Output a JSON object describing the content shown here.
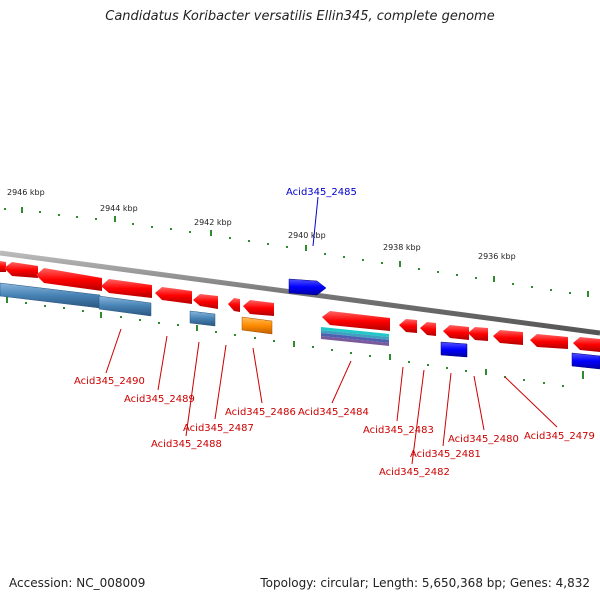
{
  "title": "Candidatus Koribacter versatilis Ellin345, complete genome",
  "footer": {
    "accession": "Accession: NC_008009",
    "topology": "Topology: circular; Length: 5,650,368 bp; Genes: 4,832"
  },
  "colors": {
    "backbone": "#888888",
    "ticks": "#2e8b2e",
    "red_gene": "#ff0000",
    "blue_gene": "#0000ff",
    "steel_gene": "#4682b4",
    "orange_gene": "#ff8c00",
    "teal_gene": "#20b2aa",
    "purple_gene": "#6a5acd",
    "label_red": "#cc0000",
    "label_blue": "#0000cc"
  },
  "scale_labels": [
    "2946 kbp",
    "2944 kbp",
    "2942 kbp",
    "2940 kbp",
    "2938 kbp",
    "2936 kbp"
  ],
  "highlighted_gene": "Acid345_2485",
  "gene_labels": [
    "Acid345_2490",
    "Acid345_2489",
    "Acid345_2488",
    "Acid345_2487",
    "Acid345_2486",
    "Acid345_2484",
    "Acid345_2483",
    "Acid345_2482",
    "Acid345_2481",
    "Acid345_2480",
    "Acid345_2479"
  ]
}
